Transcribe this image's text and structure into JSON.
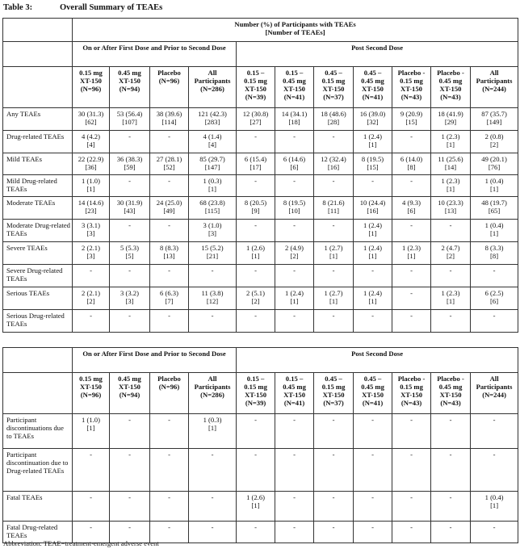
{
  "caption": {
    "number": "Table 3:",
    "title": "Overall Summary of TEAEs"
  },
  "header": {
    "top": "Number (%) of Participants with TEAEs",
    "top2": "[Number of TEAEs]",
    "period1": "On or After First Dose and Prior to Second Dose",
    "period2": "Post Second Dose",
    "columns": [
      [
        "0.15 mg",
        "XT-150",
        "(N=96)"
      ],
      [
        "0.45 mg",
        "XT-150",
        "(N=94)"
      ],
      [
        "Placebo",
        "(N=96)"
      ],
      [
        "All",
        "Participants",
        "(N=286)"
      ],
      [
        "0.15 –",
        "0.15 mg",
        "XT-150",
        "(N=39)"
      ],
      [
        "0.15 –",
        "0.45 mg",
        "XT-150",
        "(N=41)"
      ],
      [
        "0.45 –",
        "0.15 mg",
        "XT-150",
        "(N=37)"
      ],
      [
        "0.45 –",
        "0.45 mg",
        "XT-150",
        "(N=41)"
      ],
      [
        "Placebo -",
        "0.15 mg",
        "XT-150",
        "(N=43)"
      ],
      [
        "Placebo -",
        "0.45 mg",
        "XT-150",
        "(N=43)"
      ],
      [
        "All",
        "Participants",
        "(N=244)"
      ]
    ]
  },
  "table1": [
    {
      "label": "Any TEAEs",
      "cells": [
        [
          "30 (31.3)",
          "[62]"
        ],
        [
          "53 (56.4)",
          "[107]"
        ],
        [
          "38 (39.6)",
          "[114]"
        ],
        [
          "121 (42.3)",
          "[283]"
        ],
        [
          "12 (30.8)",
          "[27]"
        ],
        [
          "14 (34.1)",
          "[18]"
        ],
        [
          "18 (48.6)",
          "[28]"
        ],
        [
          "16 (39.0)",
          "[32]"
        ],
        [
          "9 (20.9)",
          "[15]"
        ],
        [
          "18 (41.9)",
          "[29]"
        ],
        [
          "87 (35.7)",
          "[149]"
        ]
      ]
    },
    {
      "label": "Drug-related TEAEs",
      "cells": [
        [
          "4 (4.2)",
          "[4]"
        ],
        [
          "-"
        ],
        [
          "-"
        ],
        [
          "4 (1.4)",
          "[4]"
        ],
        [
          "-"
        ],
        [
          "-"
        ],
        [
          "-"
        ],
        [
          "1 (2.4)",
          "[1]"
        ],
        [
          "-"
        ],
        [
          "1 (2.3)",
          "[1]"
        ],
        [
          "2 (0.8)",
          "[2]"
        ]
      ]
    },
    {
      "label": "Mild TEAEs",
      "cells": [
        [
          "22 (22.9)",
          "[36]"
        ],
        [
          "36 (38.3)",
          "[59]"
        ],
        [
          "27 (28.1)",
          "[52]"
        ],
        [
          "85 (29.7)",
          "[147]"
        ],
        [
          "6 (15.4)",
          "[17]"
        ],
        [
          "6 (14.6)",
          "[6]"
        ],
        [
          "12 (32.4)",
          "[16]"
        ],
        [
          "8 (19.5)",
          "[15]"
        ],
        [
          "6 (14.0)",
          "[8]"
        ],
        [
          "11 (25.6)",
          "[14]"
        ],
        [
          "49 (20.1)",
          "[76]"
        ]
      ]
    },
    {
      "label": "Mild Drug-related TEAEs",
      "cells": [
        [
          "1 (1.0)",
          "[1]"
        ],
        [
          "-"
        ],
        [
          "-"
        ],
        [
          "1 (0.3)",
          "[1]"
        ],
        [
          "-"
        ],
        [
          "-"
        ],
        [
          "-"
        ],
        [
          "-"
        ],
        [
          "-"
        ],
        [
          "1 (2.3)",
          "[1]"
        ],
        [
          "1 (0.4)",
          "[1]"
        ]
      ]
    },
    {
      "label": "Moderate TEAEs",
      "cells": [
        [
          "14 (14.6)",
          "[23]"
        ],
        [
          "30 (31.9)",
          "[43]"
        ],
        [
          "24 (25.0)",
          "[49]"
        ],
        [
          "68 (23.8)",
          "[115]"
        ],
        [
          "8 (20.5)",
          "[9]"
        ],
        [
          "8 (19.5)",
          "[10]"
        ],
        [
          "8 (21.6)",
          "[11]"
        ],
        [
          "10 (24.4)",
          "[16]"
        ],
        [
          "4 (9.3)",
          "[6]"
        ],
        [
          "10 (23.3)",
          "[13]"
        ],
        [
          "48 (19.7)",
          "[65]"
        ]
      ]
    },
    {
      "label": "Moderate Drug-related TEAEs",
      "cells": [
        [
          "3 (3.1)",
          "[3]"
        ],
        [
          "-"
        ],
        [
          "-"
        ],
        [
          "3 (1.0)",
          "[3]"
        ],
        [
          "-"
        ],
        [
          "-"
        ],
        [
          "-"
        ],
        [
          "1 (2.4)",
          "[1]"
        ],
        [
          "-"
        ],
        [
          "-"
        ],
        [
          "1 (0.4)",
          "[1]"
        ]
      ]
    },
    {
      "label": "Severe TEAEs",
      "cells": [
        [
          "2 (2.1)",
          "[3]"
        ],
        [
          "5 (5.3)",
          "[5]"
        ],
        [
          "8 (8.3)",
          "[13]"
        ],
        [
          "15 (5.2)",
          "[21]"
        ],
        [
          "1 (2.6)",
          "[1]"
        ],
        [
          "2 (4.9)",
          "[2]"
        ],
        [
          "1 (2.7)",
          "[1]"
        ],
        [
          "1 (2.4)",
          "[1]"
        ],
        [
          "1 (2.3)",
          "[1]"
        ],
        [
          "2 (4.7)",
          "[2]"
        ],
        [
          "8 (3.3)",
          "[8]"
        ]
      ]
    },
    {
      "label": "Severe Drug-related TEAEs",
      "cells": [
        [
          "-"
        ],
        [
          "-"
        ],
        [
          "-"
        ],
        [
          "-"
        ],
        [
          "-"
        ],
        [
          "-"
        ],
        [
          "-"
        ],
        [
          "-"
        ],
        [
          "-"
        ],
        [
          "-"
        ],
        [
          "-"
        ]
      ]
    },
    {
      "label": "Serious TEAEs",
      "cells": [
        [
          "2 (2.1)",
          "[2]"
        ],
        [
          "3 (3.2)",
          "[3]"
        ],
        [
          "6 (6.3)",
          "[7]"
        ],
        [
          "11 (3.8)",
          "[12]"
        ],
        [
          "2 (5.1)",
          "[2]"
        ],
        [
          "1 (2.4)",
          "[1]"
        ],
        [
          "1 (2.7)",
          "[1]"
        ],
        [
          "1 (2.4)",
          "[1]"
        ],
        [
          "-"
        ],
        [
          "1 (2.3)",
          "[1]"
        ],
        [
          "6 (2.5)",
          "[6]"
        ]
      ]
    },
    {
      "label": "Serious Drug-related TEAEs",
      "cells": [
        [
          "-"
        ],
        [
          "-"
        ],
        [
          "-"
        ],
        [
          "-"
        ],
        [
          "-"
        ],
        [
          "-"
        ],
        [
          "-"
        ],
        [
          "-"
        ],
        [
          "-"
        ],
        [
          "-"
        ],
        [
          "-"
        ]
      ]
    }
  ],
  "table2": [
    {
      "label": "Participant discontinuations due to TEAEs",
      "cells": [
        [
          "1 (1.0)",
          "[1]"
        ],
        [
          "-"
        ],
        [
          "-"
        ],
        [
          "1 (0.3)",
          "[1]"
        ],
        [
          "-"
        ],
        [
          "-"
        ],
        [
          "-"
        ],
        [
          "-"
        ],
        [
          "-"
        ],
        [
          "-"
        ],
        [
          "-"
        ]
      ]
    },
    {
      "label": "Participant discontinuation due to Drug-related TEAEs",
      "cells": [
        [
          "-"
        ],
        [
          "-"
        ],
        [
          "-"
        ],
        [
          "-"
        ],
        [
          "-"
        ],
        [
          "-"
        ],
        [
          "-"
        ],
        [
          "-"
        ],
        [
          "-"
        ],
        [
          "-"
        ],
        [
          "-"
        ]
      ]
    },
    {
      "label": "Fatal TEAEs",
      "cells": [
        [
          "-"
        ],
        [
          "-"
        ],
        [
          "-"
        ],
        [
          "-"
        ],
        [
          "1 (2.6)",
          "[1]"
        ],
        [
          "-"
        ],
        [
          "-"
        ],
        [
          "-"
        ],
        [
          "-"
        ],
        [
          "-"
        ],
        [
          "1 (0.4)",
          "[1]"
        ]
      ]
    },
    {
      "label": "Fatal Drug-related TEAEs",
      "cells": [
        [
          "-"
        ],
        [
          "-"
        ],
        [
          "-"
        ],
        [
          "-"
        ],
        [
          "-"
        ],
        [
          "-"
        ],
        [
          "-"
        ],
        [
          "-"
        ],
        [
          "-"
        ],
        [
          "-"
        ],
        [
          "-"
        ]
      ]
    }
  ],
  "footnote": "Abbreviation: TEAE=treatment-emergent adverse event"
}
